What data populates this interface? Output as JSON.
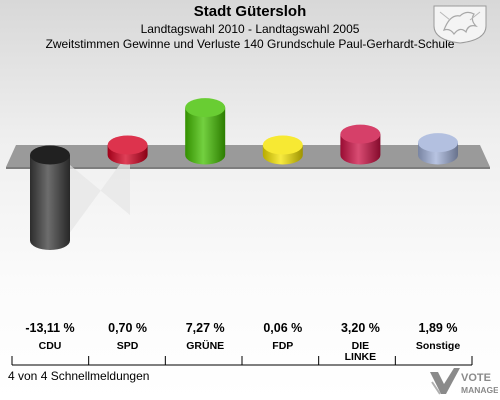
{
  "header": {
    "title": "Stadt Gütersloh",
    "subtitle1": "Landtagswahl 2010 - Landtagswahl 2005",
    "subtitle2": "Zweitstimmen Gewinne und Verluste 140 Grundschule Paul-Gerhardt-Schule"
  },
  "footer": "4 von 4 Schnellmeldungen",
  "logo": {
    "text1": "VOTE",
    "text2": "MANAGER"
  },
  "chart_data": {
    "type": "bar",
    "title": "Stadt Gütersloh",
    "subtitle": "Zweitstimmen Gewinne und Verluste 140 Grundschule Paul-Gerhardt-Schule",
    "categories": [
      "CDU",
      "SPD",
      "GRÜNE",
      "FDP",
      "DIE LINKE",
      "Sonstige"
    ],
    "values": [
      -13.11,
      0.7,
      7.27,
      0.06,
      3.2,
      1.89
    ],
    "value_labels": [
      "-13,11 %",
      "0,70 %",
      "7,27 %",
      "0,06 %",
      "3,20 %",
      "1,89 %"
    ],
    "colors": [
      "#3c3c3c",
      "#d40020",
      "#44c000",
      "#f5e400",
      "#cc1044",
      "#a0b0d8"
    ],
    "ylabel": "",
    "xlabel": "",
    "ylim": [
      -13.11,
      7.27
    ],
    "grid": false,
    "legend": "none"
  }
}
